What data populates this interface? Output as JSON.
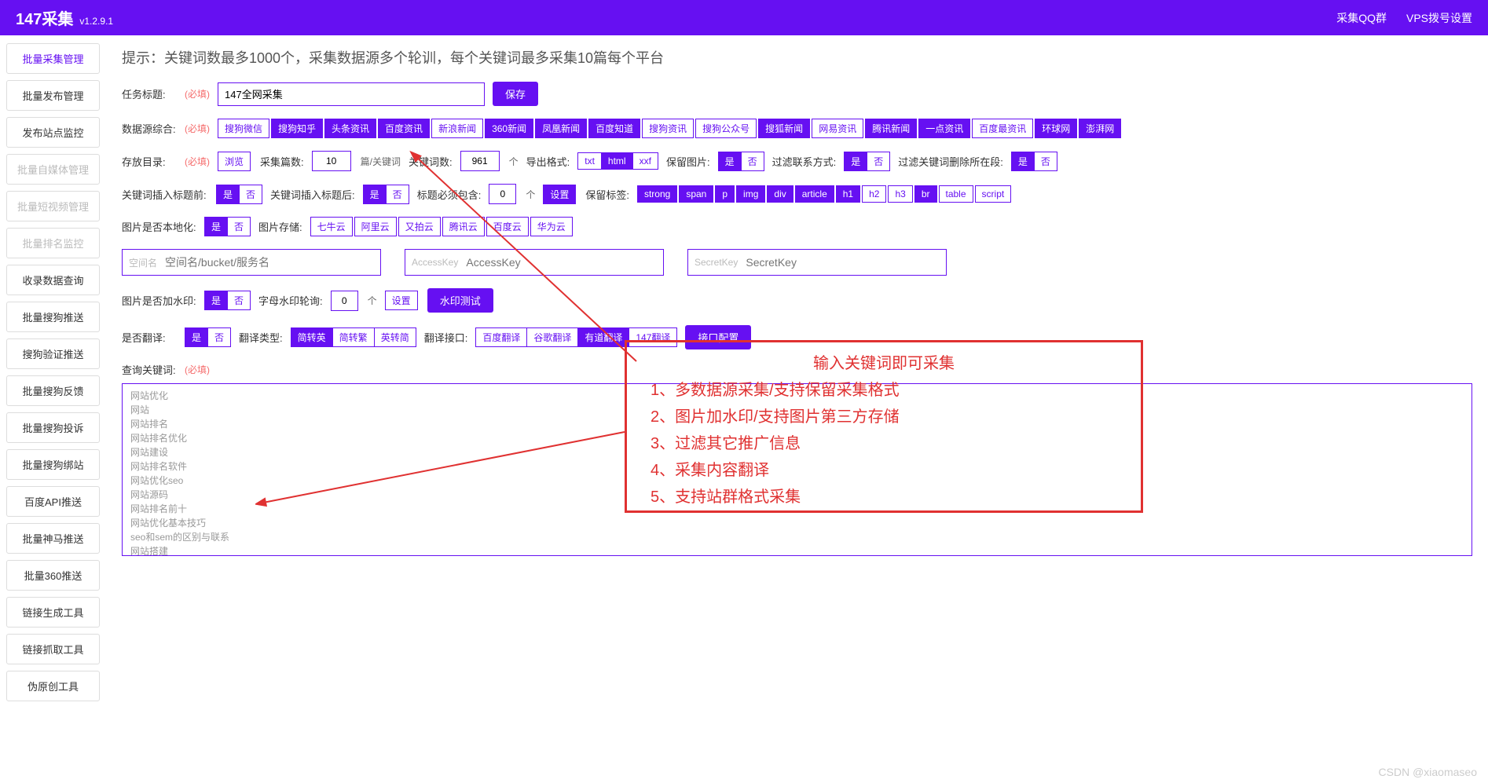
{
  "header": {
    "title": "147采集",
    "version": "v1.2.9.1",
    "link_qq": "采集QQ群",
    "link_vps": "VPS拨号设置"
  },
  "sidebar": {
    "items": [
      {
        "label": "批量采集管理",
        "state": "active"
      },
      {
        "label": "批量发布管理",
        "state": ""
      },
      {
        "label": "发布站点监控",
        "state": ""
      },
      {
        "label": "批量自媒体管理",
        "state": "disabled"
      },
      {
        "label": "批量短视频管理",
        "state": "disabled"
      },
      {
        "label": "批量排名监控",
        "state": "disabled"
      },
      {
        "label": "收录数据查询",
        "state": ""
      },
      {
        "label": "批量搜狗推送",
        "state": ""
      },
      {
        "label": "搜狗验证推送",
        "state": ""
      },
      {
        "label": "批量搜狗反馈",
        "state": ""
      },
      {
        "label": "批量搜狗投诉",
        "state": ""
      },
      {
        "label": "批量搜狗绑站",
        "state": ""
      },
      {
        "label": "百度API推送",
        "state": ""
      },
      {
        "label": "批量神马推送",
        "state": ""
      },
      {
        "label": "批量360推送",
        "state": ""
      },
      {
        "label": "链接生成工具",
        "state": ""
      },
      {
        "label": "链接抓取工具",
        "state": ""
      },
      {
        "label": "伪原创工具",
        "state": ""
      }
    ]
  },
  "hint": "提示：关键词数最多1000个，采集数据源多个轮训，每个关键词最多采集10篇每个平台",
  "task": {
    "label": "任务标题:",
    "req": "(必填)",
    "value": "147全网采集",
    "save_btn": "保存"
  },
  "sources": {
    "label": "数据源综合:",
    "req": "(必填)",
    "items": [
      {
        "label": "搜狗微信",
        "on": false
      },
      {
        "label": "搜狗知乎",
        "on": true
      },
      {
        "label": "头条资讯",
        "on": true
      },
      {
        "label": "百度资讯",
        "on": true
      },
      {
        "label": "新浪新闻",
        "on": false
      },
      {
        "label": "360新闻",
        "on": true
      },
      {
        "label": "凤凰新闻",
        "on": true
      },
      {
        "label": "百度知道",
        "on": true
      },
      {
        "label": "搜狗资讯",
        "on": false
      },
      {
        "label": "搜狗公众号",
        "on": false
      },
      {
        "label": "搜狐新闻",
        "on": true
      },
      {
        "label": "网易资讯",
        "on": false
      },
      {
        "label": "腾讯新闻",
        "on": true
      },
      {
        "label": "一点资讯",
        "on": true
      },
      {
        "label": "百度最资讯",
        "on": false
      },
      {
        "label": "环球网",
        "on": true
      },
      {
        "label": "澎湃网",
        "on": true
      }
    ]
  },
  "storage": {
    "label": "存放目录:",
    "req": "(必填)",
    "browse": "浏览",
    "count_label": "采集篇数:",
    "count_value": "10",
    "count_unit": "篇/关键词",
    "kw_label": "关键词数:",
    "kw_value": "961",
    "kw_unit": "个",
    "export_label": "导出格式:",
    "export_opts": [
      {
        "label": "txt",
        "on": false
      },
      {
        "label": "html",
        "on": true
      },
      {
        "label": "xxf",
        "on": false
      }
    ],
    "keep_img_label": "保留图片:",
    "keep_img": [
      {
        "label": "是",
        "on": true
      },
      {
        "label": "否",
        "on": false
      }
    ],
    "filter_contact_label": "过滤联系方式:",
    "filter_contact": [
      {
        "label": "是",
        "on": true
      },
      {
        "label": "否",
        "on": false
      }
    ],
    "filter_kw_label": "过滤关键词删除所在段:",
    "filter_kw": [
      {
        "label": "是",
        "on": true
      },
      {
        "label": "否",
        "on": false
      }
    ]
  },
  "insert": {
    "before_label": "关键词插入标题前:",
    "before": [
      {
        "label": "是",
        "on": true
      },
      {
        "label": "否",
        "on": false
      }
    ],
    "after_label": "关键词插入标题后:",
    "after": [
      {
        "label": "是",
        "on": true
      },
      {
        "label": "否",
        "on": false
      }
    ],
    "must_label": "标题必须包含:",
    "must_value": "0",
    "must_unit": "个",
    "must_set": "设置",
    "keep_tags_label": "保留标签:",
    "tags": [
      {
        "label": "strong",
        "on": true
      },
      {
        "label": "span",
        "on": true
      },
      {
        "label": "p",
        "on": true
      },
      {
        "label": "img",
        "on": true
      },
      {
        "label": "div",
        "on": true
      },
      {
        "label": "article",
        "on": true
      },
      {
        "label": "h1",
        "on": true
      },
      {
        "label": "h2",
        "on": false
      },
      {
        "label": "h3",
        "on": false
      },
      {
        "label": "br",
        "on": true
      },
      {
        "label": "table",
        "on": false
      },
      {
        "label": "script",
        "on": false
      }
    ]
  },
  "image": {
    "local_label": "图片是否本地化:",
    "local": [
      {
        "label": "是",
        "on": true
      },
      {
        "label": "否",
        "on": false
      }
    ],
    "storage_label": "图片存储:",
    "clouds": [
      {
        "label": "七牛云",
        "on": false
      },
      {
        "label": "阿里云",
        "on": false
      },
      {
        "label": "又拍云",
        "on": false
      },
      {
        "label": "腾讯云",
        "on": false
      },
      {
        "label": "百度云",
        "on": false
      },
      {
        "label": "华为云",
        "on": false
      }
    ],
    "bucket_pre": "空间名",
    "bucket_ph": "空间名/bucket/服务名",
    "ak_pre": "AccessKey",
    "ak_ph": "AccessKey",
    "sk_pre": "SecretKey",
    "sk_ph": "SecretKey"
  },
  "watermark": {
    "label": "图片是否加水印:",
    "opts": [
      {
        "label": "是",
        "on": true
      },
      {
        "label": "否",
        "on": false
      }
    ],
    "rotate_label": "字母水印轮询:",
    "rotate_value": "0",
    "rotate_unit": "个",
    "set_btn": "设置",
    "test_btn": "水印测试"
  },
  "translate": {
    "label": "是否翻译:",
    "opts": [
      {
        "label": "是",
        "on": true
      },
      {
        "label": "否",
        "on": false
      }
    ],
    "type_label": "翻译类型:",
    "types": [
      {
        "label": "简转英",
        "on": true
      },
      {
        "label": "简转繁",
        "on": false
      },
      {
        "label": "英转简",
        "on": false
      }
    ],
    "api_label": "翻译接口:",
    "apis": [
      {
        "label": "百度翻译",
        "on": false
      },
      {
        "label": "谷歌翻译",
        "on": false
      },
      {
        "label": "有道翻译",
        "on": true
      },
      {
        "label": "147翻译",
        "on": false
      }
    ],
    "config_btn": "接口配置"
  },
  "keywords": {
    "label": "查询关键词:",
    "req": "(必填)",
    "content": "网站优化\n网站\n网站排名\n网站排名优化\n网站建设\n网站排名软件\n网站优化seo\n网站源码\n网站排名前十\n网站优化基本技巧\nseo和sem的区别与联系\n网站搭建\n网站排名查询\n网站优化培训\nseo是什么意思"
  },
  "annotation": {
    "title": "输入关键词即可采集",
    "l1": "1、多数据源采集/支持保留采集格式",
    "l2": "2、图片加水印/支持图片第三方存储",
    "l3": "3、过滤其它推广信息",
    "l4": "4、采集内容翻译",
    "l5": "5、支持站群格式采集"
  },
  "csdn_watermark": "CSDN @xiaomaseo",
  "colors": {
    "primary": "#6610f2",
    "annotation": "#e03131"
  }
}
